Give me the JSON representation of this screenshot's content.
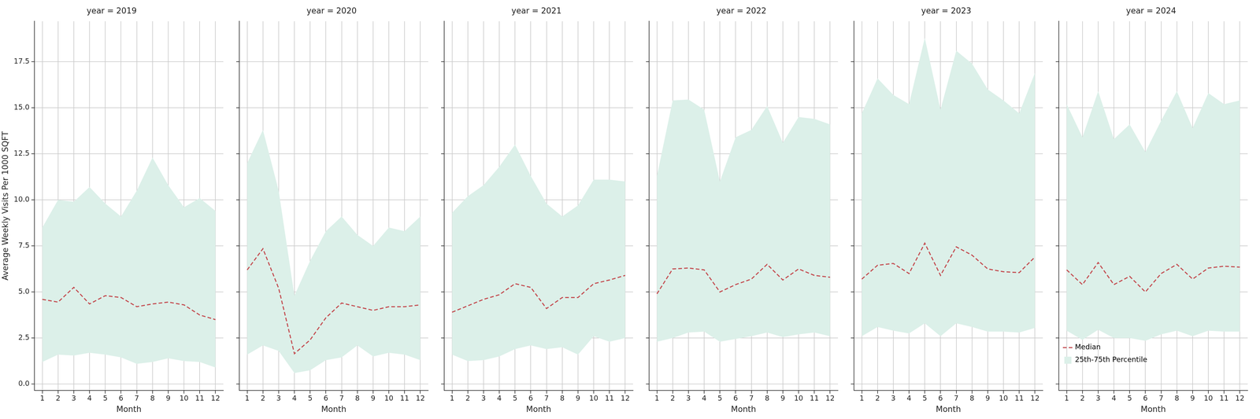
{
  "chart_data": [
    {
      "type": "line",
      "title": "year = 2019",
      "x_label": "Month",
      "y_label": "Average Weekly Visits Per 1000 SQFT",
      "x": [
        1,
        2,
        3,
        4,
        5,
        6,
        7,
        8,
        9,
        10,
        11,
        12
      ],
      "xlim": [
        0.5,
        12.5
      ],
      "xticks": [
        1,
        2,
        3,
        4,
        5,
        6,
        7,
        8,
        9,
        10,
        11,
        12
      ],
      "ylim": [
        -0.35,
        19.7
      ],
      "yticks": [
        {
          "value": 0,
          "label": "0.0"
        },
        2.5,
        {
          "value": 5,
          "label": "5.0"
        },
        7.5,
        {
          "value": 10,
          "label": "10.0"
        },
        12.5,
        {
          "value": 15,
          "label": "15.0"
        },
        17.5
      ],
      "grid": true,
      "series": [
        {
          "name": "Median",
          "type": "line",
          "color": "#c44e52",
          "line_style": "dashed",
          "values": [
            4.6,
            4.45,
            5.25,
            4.35,
            4.8,
            4.7,
            4.2,
            4.35,
            4.45,
            4.3,
            3.75,
            3.5
          ]
        },
        {
          "name": "25th-75th Percentile",
          "type": "band",
          "color": "#dcf0e9",
          "low": [
            1.2,
            1.6,
            1.55,
            1.7,
            1.6,
            1.45,
            1.1,
            1.2,
            1.4,
            1.25,
            1.2,
            0.9
          ],
          "high": [
            8.5,
            10.0,
            9.9,
            10.7,
            9.8,
            9.1,
            10.5,
            12.3,
            10.8,
            9.6,
            10.1,
            9.4
          ]
        }
      ]
    },
    {
      "type": "line",
      "title": "year = 2020",
      "x_label": "Month",
      "x": [
        1,
        2,
        3,
        4,
        5,
        6,
        7,
        8,
        9,
        10,
        11,
        12
      ],
      "xlim": [
        0.5,
        12.5
      ],
      "xticks": [
        1,
        2,
        3,
        4,
        5,
        6,
        7,
        8,
        9,
        10,
        11,
        12
      ],
      "ylim": [
        -0.35,
        19.7
      ],
      "yticks": [
        {
          "value": 0,
          "label": "0.0"
        },
        2.5,
        {
          "value": 5,
          "label": "5.0"
        },
        7.5,
        {
          "value": 10,
          "label": "10.0"
        },
        12.5,
        {
          "value": 15,
          "label": "15.0"
        },
        17.5
      ],
      "grid": true,
      "tick_labels": "x",
      "series": [
        {
          "name": "Median",
          "type": "line",
          "color": "#c44e52",
          "line_style": "dashed",
          "values": [
            6.2,
            7.35,
            5.2,
            1.65,
            2.4,
            3.6,
            4.4,
            4.2,
            4.0,
            4.2,
            4.2,
            4.3
          ]
        },
        {
          "name": "25th-75th Percentile",
          "type": "band",
          "color": "#dcf0e9",
          "low": [
            1.6,
            2.1,
            1.8,
            0.6,
            0.75,
            1.3,
            1.45,
            2.1,
            1.5,
            1.7,
            1.6,
            1.3
          ],
          "high": [
            12.0,
            13.8,
            10.5,
            4.8,
            6.7,
            8.3,
            9.1,
            8.1,
            7.5,
            8.5,
            8.3,
            9.1
          ]
        }
      ]
    },
    {
      "type": "line",
      "title": "year = 2021",
      "x_label": "Month",
      "x": [
        1,
        2,
        3,
        4,
        5,
        6,
        7,
        8,
        9,
        10,
        11,
        12
      ],
      "xlim": [
        0.5,
        12.5
      ],
      "xticks": [
        1,
        2,
        3,
        4,
        5,
        6,
        7,
        8,
        9,
        10,
        11,
        12
      ],
      "ylim": [
        -0.35,
        19.7
      ],
      "yticks": [
        {
          "value": 0,
          "label": "0.0"
        },
        2.5,
        {
          "value": 5,
          "label": "5.0"
        },
        7.5,
        {
          "value": 10,
          "label": "10.0"
        },
        12.5,
        {
          "value": 15,
          "label": "15.0"
        },
        17.5
      ],
      "grid": true,
      "tick_labels": "x",
      "series": [
        {
          "name": "Median",
          "type": "line",
          "color": "#c44e52",
          "line_style": "dashed",
          "values": [
            3.9,
            4.25,
            4.6,
            4.85,
            5.45,
            5.25,
            4.1,
            4.7,
            4.7,
            5.45,
            5.65,
            5.9
          ]
        },
        {
          "name": "25th-75th Percentile",
          "type": "band",
          "color": "#dcf0e9",
          "low": [
            1.6,
            1.25,
            1.3,
            1.5,
            1.9,
            2.1,
            1.9,
            2.0,
            1.6,
            2.6,
            2.3,
            2.5
          ],
          "high": [
            9.3,
            10.2,
            10.8,
            11.8,
            13.0,
            11.3,
            9.8,
            9.1,
            9.7,
            11.1,
            11.1,
            11.0
          ]
        }
      ]
    },
    {
      "type": "line",
      "title": "year = 2022",
      "x_label": "Month",
      "x": [
        1,
        2,
        3,
        4,
        5,
        6,
        7,
        8,
        9,
        10,
        11,
        12
      ],
      "xlim": [
        0.5,
        12.5
      ],
      "xticks": [
        1,
        2,
        3,
        4,
        5,
        6,
        7,
        8,
        9,
        10,
        11,
        12
      ],
      "ylim": [
        -0.35,
        19.7
      ],
      "yticks": [
        {
          "value": 0,
          "label": "0.0"
        },
        2.5,
        {
          "value": 5,
          "label": "5.0"
        },
        7.5,
        {
          "value": 10,
          "label": "10.0"
        },
        12.5,
        {
          "value": 15,
          "label": "15.0"
        },
        17.5
      ],
      "grid": true,
      "tick_labels": "x",
      "series": [
        {
          "name": "Median",
          "type": "line",
          "color": "#c44e52",
          "line_style": "dashed",
          "values": [
            4.9,
            6.25,
            6.3,
            6.2,
            5.0,
            5.4,
            5.7,
            6.5,
            5.65,
            6.25,
            5.9,
            5.8
          ]
        },
        {
          "name": "25th-75th Percentile",
          "type": "band",
          "color": "#dcf0e9",
          "low": [
            2.3,
            2.5,
            2.8,
            2.85,
            2.3,
            2.45,
            2.6,
            2.8,
            2.55,
            2.7,
            2.8,
            2.6
          ],
          "high": [
            11.3,
            15.4,
            15.45,
            14.9,
            11.0,
            13.4,
            13.8,
            15.1,
            13.1,
            14.5,
            14.4,
            14.1
          ]
        }
      ]
    },
    {
      "type": "line",
      "title": "year = 2023",
      "x_label": "Month",
      "x": [
        1,
        2,
        3,
        4,
        5,
        6,
        7,
        8,
        9,
        10,
        11,
        12
      ],
      "xlim": [
        0.5,
        12.5
      ],
      "xticks": [
        1,
        2,
        3,
        4,
        5,
        6,
        7,
        8,
        9,
        10,
        11,
        12
      ],
      "ylim": [
        -0.35,
        19.7
      ],
      "yticks": [
        {
          "value": 0,
          "label": "0.0"
        },
        2.5,
        {
          "value": 5,
          "label": "5.0"
        },
        7.5,
        {
          "value": 10,
          "label": "10.0"
        },
        12.5,
        {
          "value": 15,
          "label": "15.0"
        },
        17.5
      ],
      "grid": true,
      "tick_labels": "x",
      "series": [
        {
          "name": "Median",
          "type": "line",
          "color": "#c44e52",
          "line_style": "dashed",
          "values": [
            5.7,
            6.45,
            6.55,
            6.0,
            7.65,
            5.9,
            7.45,
            7.0,
            6.25,
            6.1,
            6.05,
            6.9
          ]
        },
        {
          "name": "25th-75th Percentile",
          "type": "band",
          "color": "#dcf0e9",
          "low": [
            2.6,
            3.1,
            2.9,
            2.75,
            3.3,
            2.6,
            3.3,
            3.1,
            2.85,
            2.85,
            2.8,
            3.05
          ],
          "high": [
            14.7,
            16.6,
            15.7,
            15.2,
            18.8,
            14.9,
            18.1,
            17.4,
            16.0,
            15.4,
            14.7,
            16.9
          ]
        }
      ]
    },
    {
      "type": "line",
      "title": "year = 2024",
      "x_label": "Month",
      "x": [
        1,
        2,
        3,
        4,
        5,
        6,
        7,
        8,
        9,
        10,
        11,
        12
      ],
      "xlim": [
        0.5,
        12.5
      ],
      "xticks": [
        1,
        2,
        3,
        4,
        5,
        6,
        7,
        8,
        9,
        10,
        11,
        12
      ],
      "ylim": [
        -0.35,
        19.7
      ],
      "yticks": [
        {
          "value": 0,
          "label": "0.0"
        },
        2.5,
        {
          "value": 5,
          "label": "5.0"
        },
        7.5,
        {
          "value": 10,
          "label": "10.0"
        },
        12.5,
        {
          "value": 15,
          "label": "15.0"
        },
        17.5
      ],
      "grid": true,
      "tick_labels": "x",
      "legend": "upper right",
      "series": [
        {
          "name": "Median",
          "type": "line",
          "color": "#c44e52",
          "line_style": "dashed",
          "values": [
            6.2,
            5.4,
            6.6,
            5.4,
            5.85,
            5.0,
            6.0,
            6.5,
            5.7,
            6.3,
            6.4,
            6.35
          ]
        },
        {
          "name": "25th-75th Percentile",
          "type": "band",
          "color": "#dcf0e9",
          "low": [
            2.9,
            2.4,
            2.95,
            2.5,
            2.5,
            2.35,
            2.7,
            2.9,
            2.6,
            2.9,
            2.85,
            2.85
          ],
          "high": [
            15.2,
            13.4,
            15.9,
            13.3,
            14.1,
            12.6,
            14.3,
            15.9,
            13.9,
            15.8,
            15.2,
            15.4
          ]
        }
      ]
    }
  ]
}
